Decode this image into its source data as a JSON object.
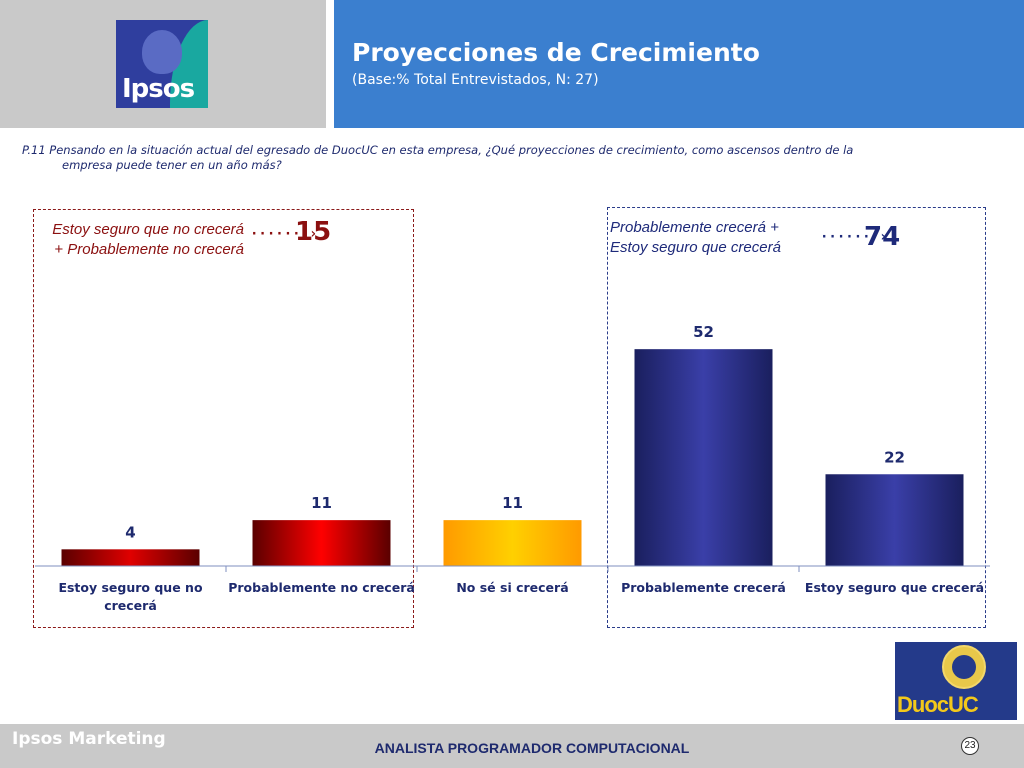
{
  "header": {
    "logo_text": "Ipsos",
    "title": "Proyecciones de Crecimiento",
    "subtitle": "(Base:% Total Entrevistados, N: 27)"
  },
  "question": {
    "line1": "P.11 Pensando en la situación actual del egresado de DuocUC en  esta empresa, ¿Qué  proyecciones de crecimiento, como ascensos dentro de la",
    "line2": "empresa  puede tener en un año más?"
  },
  "groups": {
    "negative": {
      "label": "Estoy seguro que no crecerá + Probablemente no crecerá",
      "total": "15",
      "color": "#8b1010"
    },
    "positive": {
      "label": "Probablemente crecerá + Estoy seguro que crecerá",
      "total": "74",
      "color": "#1e2a7a"
    }
  },
  "chart_data": {
    "type": "bar",
    "title": "Proyecciones de Crecimiento",
    "categories": [
      "Estoy seguro que no crecerá",
      "Probablemente no crecerá",
      "No sé si crecerá",
      "Probablemente crecerá",
      "Estoy seguro que crecerá"
    ],
    "values": [
      4,
      11,
      11,
      52,
      22
    ],
    "value_labels": [
      "4",
      "11",
      "11",
      "52",
      "22"
    ],
    "bar_colors": [
      [
        "#5a0000",
        "#e00000",
        "#5a0000"
      ],
      [
        "#5a0000",
        "#ff0000",
        "#5a0000"
      ],
      [
        "#ff9a00",
        "#ffd000",
        "#ff9a00"
      ],
      [
        "#1a1f5e",
        "#3a3fa8",
        "#1a1f5e"
      ],
      [
        "#1a1f5e",
        "#3a3fa8",
        "#1a1f5e"
      ]
    ],
    "ylim": [
      0,
      60
    ],
    "grid": false,
    "legend": "none",
    "xlabel": "",
    "ylabel": ""
  },
  "footer": {
    "brand": "Ipsos Marketing",
    "caption": "ANALISTA PROGRAMADOR COMPUTACIONAL",
    "page_number": "23",
    "partner_logo_text": "DuocUC"
  }
}
